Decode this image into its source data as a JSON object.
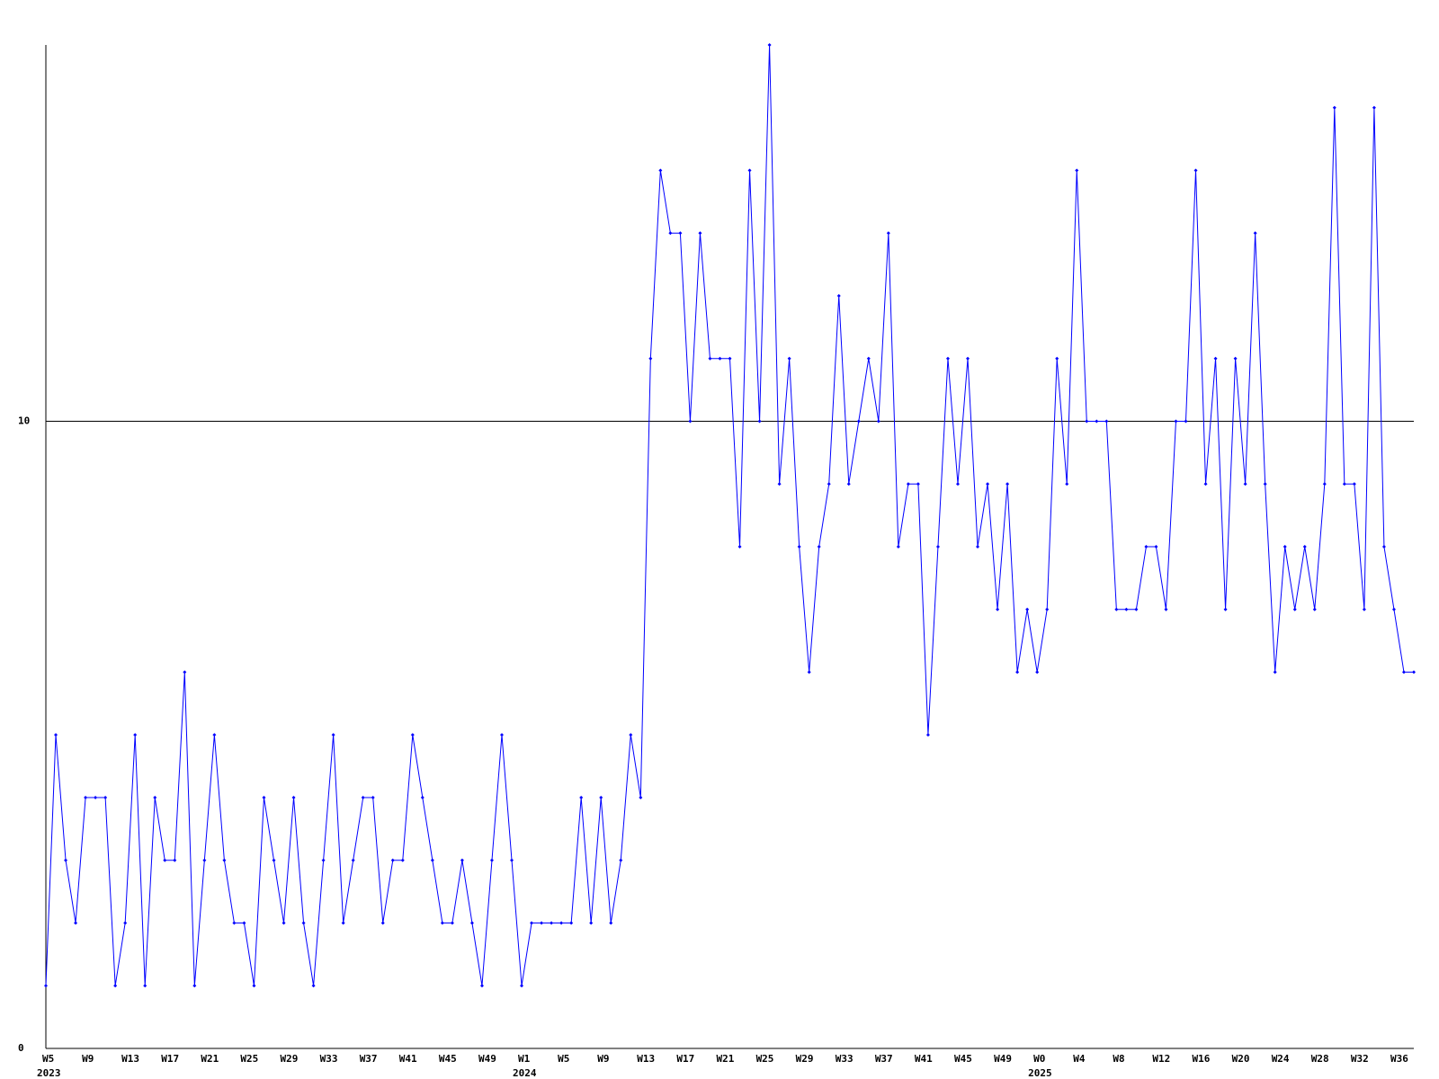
{
  "chart_data": {
    "type": "line",
    "categories": [
      "W5",
      null,
      null,
      null,
      "W9",
      null,
      null,
      null,
      "W13",
      null,
      null,
      null,
      "W17",
      null,
      null,
      null,
      "W21",
      null,
      null,
      null,
      "W25",
      null,
      null,
      null,
      "W29",
      null,
      null,
      null,
      "W33",
      null,
      null,
      null,
      "W37",
      null,
      null,
      null,
      "W41",
      null,
      null,
      null,
      "W45",
      null,
      null,
      null,
      "W49",
      null,
      null,
      null,
      "W1",
      null,
      null,
      null,
      "W5",
      null,
      null,
      null,
      "W9",
      null,
      null,
      null,
      "W13",
      null,
      null,
      null,
      "W17",
      null,
      null,
      null,
      "W21",
      null,
      null,
      null,
      "W25",
      null,
      null,
      null,
      "W29",
      null,
      null,
      null,
      "W33",
      null,
      null,
      null,
      "W37",
      null,
      null,
      null,
      "W41",
      null,
      null,
      null,
      "W45",
      null,
      null,
      null,
      "W49",
      null,
      null,
      null,
      "W0",
      null,
      null,
      null,
      "W4",
      null,
      null,
      null,
      "W8",
      null,
      null,
      null,
      "W12",
      null,
      null,
      null,
      "W16",
      null,
      null,
      null,
      "W20",
      null,
      null,
      null,
      "W24",
      null,
      null,
      null,
      "W28",
      null,
      null,
      null,
      "W32",
      null,
      null,
      null,
      "W36",
      null,
      null
    ],
    "years": [
      "2023",
      "2024",
      "2025"
    ],
    "series": [
      {
        "color": "#0000ff",
        "values": [
          1,
          5,
          3,
          2,
          4,
          4,
          4,
          1,
          2,
          5,
          1,
          4,
          3,
          3,
          6,
          1,
          3,
          5,
          3,
          2,
          2,
          1,
          4,
          3,
          2,
          4,
          2,
          1,
          3,
          5,
          2,
          3,
          4,
          4,
          2,
          3,
          3,
          5,
          4,
          3,
          2,
          2,
          3,
          2,
          1,
          3,
          5,
          3,
          1,
          2,
          2,
          2,
          2,
          2,
          4,
          2,
          4,
          2,
          3,
          5,
          4,
          11,
          14,
          13,
          13,
          10,
          13,
          11,
          11,
          11,
          8,
          14,
          10,
          16,
          9,
          11,
          8,
          6,
          8,
          9,
          12,
          9,
          10,
          11,
          10,
          13,
          8,
          9,
          9,
          5,
          8,
          11,
          9,
          11,
          8,
          9,
          7,
          9,
          6,
          7,
          6,
          7,
          11,
          9,
          14,
          10,
          10,
          10,
          7,
          7,
          7,
          8,
          8,
          7,
          10,
          10,
          14,
          9,
          11,
          7,
          11,
          9,
          13,
          9,
          6,
          8,
          7,
          8,
          7,
          9,
          15,
          9,
          9,
          7,
          15,
          8,
          7,
          6,
          6
        ]
      }
    ],
    "ylim": [
      0,
      16
    ],
    "yticks": [
      0,
      10
    ],
    "grid": true
  }
}
